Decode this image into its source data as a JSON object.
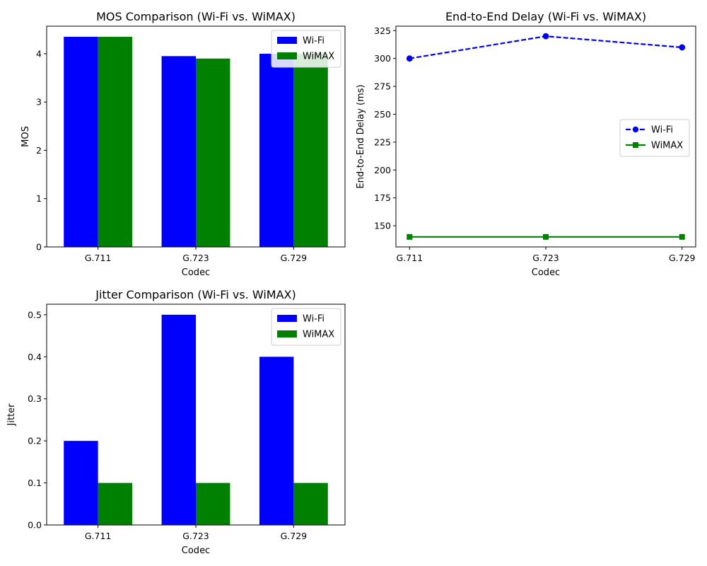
{
  "chart_data": [
    {
      "type": "bar",
      "title": "MOS Comparison (Wi-Fi vs. WiMAX)",
      "xlabel": "Codec",
      "ylabel": "MOS",
      "categories": [
        "G.711",
        "G.723",
        "G.729"
      ],
      "series": [
        {
          "name": "Wi-Fi",
          "values": [
            4.35,
            3.95,
            4.0
          ],
          "color": "#0000ff"
        },
        {
          "name": "WiMAX",
          "values": [
            4.35,
            3.9,
            4.0
          ],
          "color": "#008000"
        }
      ],
      "ylim": [
        0,
        4.57
      ],
      "yticks": [
        0,
        1,
        2,
        3,
        4
      ],
      "ytick_labels": [
        "0",
        "1",
        "2",
        "3",
        "4"
      ],
      "legend_position": "top-right",
      "grid": false
    },
    {
      "type": "line",
      "title": "End-to-End Delay (Wi-Fi vs. WiMAX)",
      "xlabel": "Codec",
      "ylabel": "End-to-End Delay (ms)",
      "categories": [
        "G.711",
        "G.723",
        "G.729"
      ],
      "series": [
        {
          "name": "Wi-Fi",
          "values": [
            300,
            320,
            310
          ],
          "color": "#0000ff",
          "line_style": "dashed",
          "marker": "circle"
        },
        {
          "name": "WiMAX",
          "values": [
            140,
            140,
            140
          ],
          "color": "#008000",
          "line_style": "solid",
          "marker": "square"
        }
      ],
      "ylim": [
        131,
        329
      ],
      "yticks": [
        150,
        175,
        200,
        225,
        250,
        275,
        300,
        325
      ],
      "ytick_labels": [
        "150",
        "175",
        "200",
        "225",
        "250",
        "275",
        "300",
        "325"
      ],
      "legend_position": "center-right",
      "grid": false
    },
    {
      "type": "bar",
      "title": "Jitter Comparison (Wi-Fi vs. WiMAX)",
      "xlabel": "Codec",
      "ylabel": "Jitter",
      "categories": [
        "G.711",
        "G.723",
        "G.729"
      ],
      "series": [
        {
          "name": "Wi-Fi",
          "values": [
            0.2,
            0.5,
            0.4
          ],
          "color": "#0000ff"
        },
        {
          "name": "WiMAX",
          "values": [
            0.1,
            0.1,
            0.1
          ],
          "color": "#008000"
        }
      ],
      "ylim": [
        0,
        0.525
      ],
      "yticks": [
        0,
        0.1,
        0.2,
        0.3,
        0.4,
        0.5
      ],
      "ytick_labels": [
        "0.0",
        "0.1",
        "0.2",
        "0.3",
        "0.4",
        "0.5"
      ],
      "legend_position": "top-right",
      "grid": false
    }
  ]
}
